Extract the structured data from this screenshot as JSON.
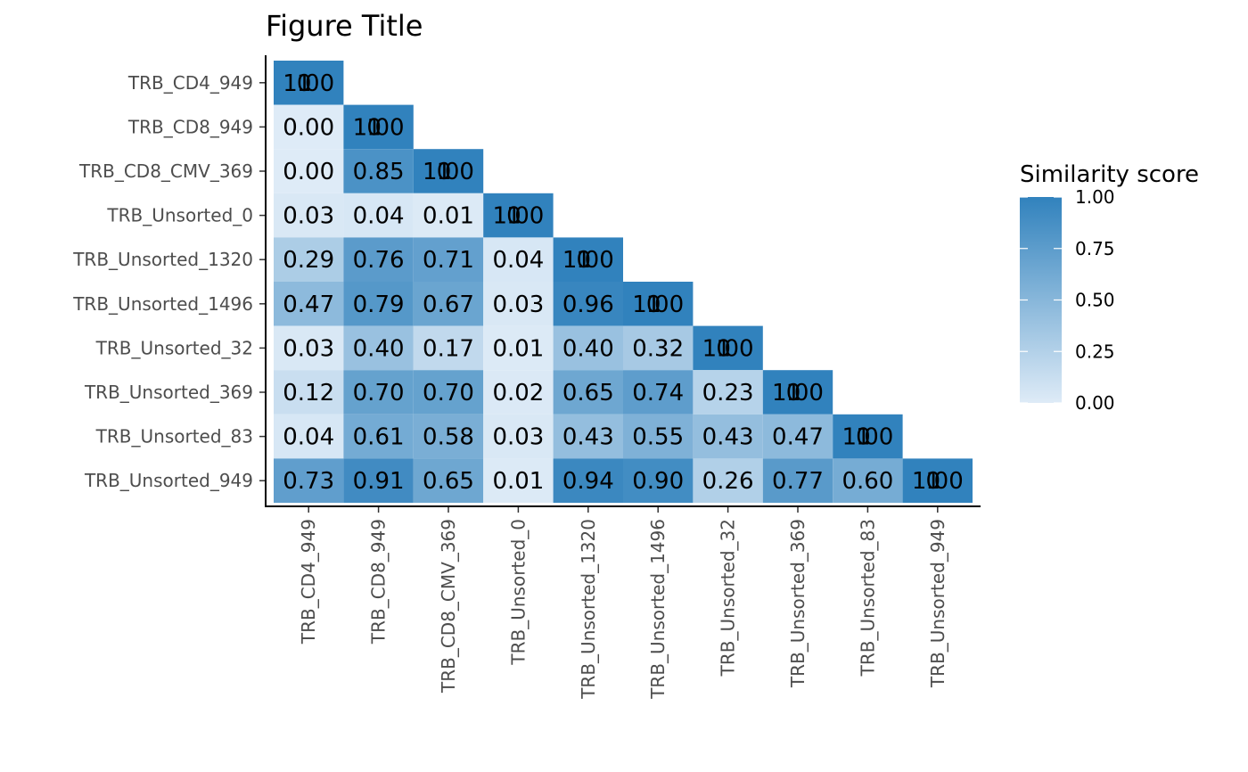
{
  "chart_data": {
    "type": "heatmap",
    "title": "Figure Title",
    "xlabel": "",
    "ylabel": "",
    "categories": [
      "TRB_CD4_949",
      "TRB_CD8_949",
      "TRB_CD8_CMV_369",
      "TRB_Unsorted_0",
      "TRB_Unsorted_1320",
      "TRB_Unsorted_1496",
      "TRB_Unsorted_32",
      "TRB_Unsorted_369",
      "TRB_Unsorted_83",
      "TRB_Unsorted_949"
    ],
    "matrix": [
      [
        1.0
      ],
      [
        0.0,
        1.0
      ],
      [
        0.0,
        0.85,
        1.0
      ],
      [
        0.03,
        0.04,
        0.01,
        1.0
      ],
      [
        0.29,
        0.76,
        0.71,
        0.04,
        1.0
      ],
      [
        0.47,
        0.79,
        0.67,
        0.03,
        0.96,
        1.0
      ],
      [
        0.03,
        0.4,
        0.17,
        0.01,
        0.4,
        0.32,
        1.0
      ],
      [
        0.12,
        0.7,
        0.7,
        0.02,
        0.65,
        0.74,
        0.23,
        1.0
      ],
      [
        0.04,
        0.61,
        0.58,
        0.03,
        0.43,
        0.55,
        0.43,
        0.47,
        1.0
      ],
      [
        0.73,
        0.91,
        0.65,
        0.01,
        0.94,
        0.9,
        0.26,
        0.77,
        0.6,
        1.0
      ]
    ],
    "diagonal_overlay_labels": [
      "1",
      "0"
    ],
    "legend": {
      "title": "Similarity score",
      "ticks": [
        "0.00",
        "0.25",
        "0.50",
        "0.75",
        "1.00"
      ],
      "position": "right"
    },
    "color_low": "#deebf7",
    "color_high": "#3182bd",
    "grid": false
  }
}
